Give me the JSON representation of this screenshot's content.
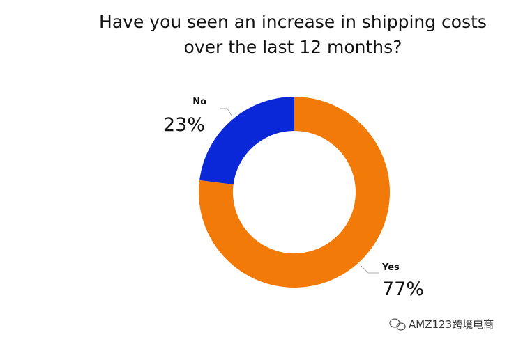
{
  "chart_data": {
    "type": "donut",
    "title": "Have you seen an increase in shipping costs over the last 12 months?",
    "categories": [
      "Yes",
      "No"
    ],
    "values": [
      77,
      23
    ],
    "value_labels": [
      "77%",
      "23%"
    ],
    "colors": [
      "#f27a08",
      "#0a27d8"
    ]
  },
  "watermark": "AMZ123跨境电商"
}
